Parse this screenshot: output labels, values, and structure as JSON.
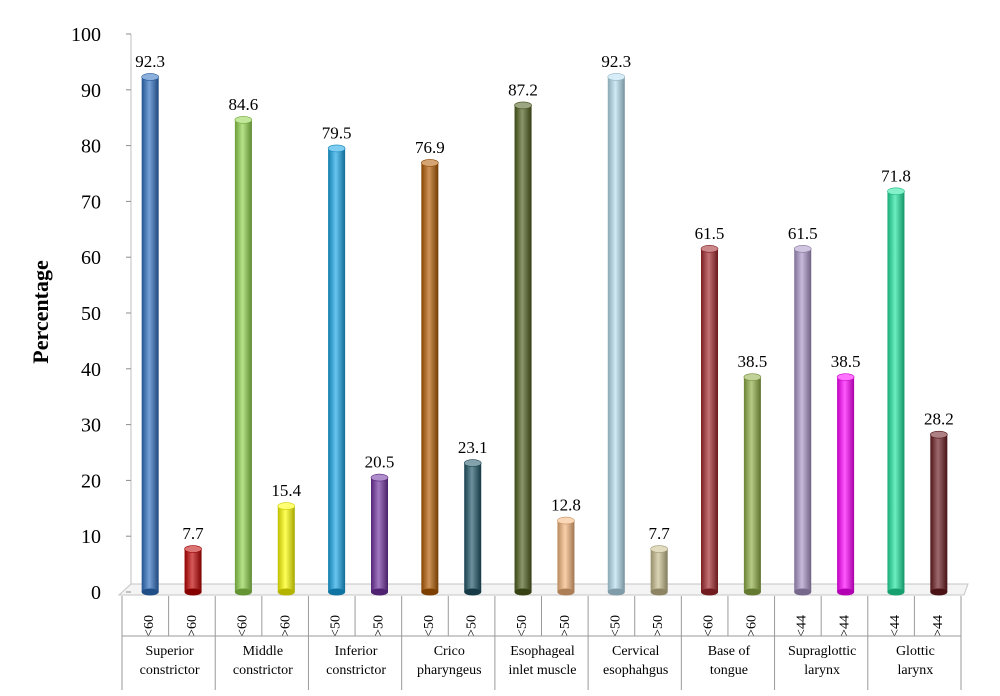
{
  "chart_data": {
    "type": "bar",
    "title": "",
    "ylabel": "Percentage",
    "xlabel": "",
    "ylim": [
      0,
      100
    ],
    "yticks": [
      0,
      10,
      20,
      30,
      40,
      50,
      60,
      70,
      80,
      90,
      100
    ],
    "grid": false,
    "legend": "none",
    "groups": [
      {
        "name": [
          "Superior",
          "constrictor"
        ],
        "bars": [
          {
            "label": "<60",
            "value": 92.3,
            "color": "#2e6fc0"
          },
          {
            "label": ">60",
            "value": 7.7,
            "color": "#c00000"
          }
        ]
      },
      {
        "name": [
          "Middle",
          "constrictor"
        ],
        "bars": [
          {
            "label": "<60",
            "value": 84.6,
            "color": "#8fd34a"
          },
          {
            "label": ">60",
            "value": 15.4,
            "color": "#ffff00"
          }
        ]
      },
      {
        "name": [
          "Inferior",
          "constrictor"
        ],
        "bars": [
          {
            "label": "<50",
            "value": 79.5,
            "color": "#16a6e6"
          },
          {
            "label": ">50",
            "value": 20.5,
            "color": "#7030a0"
          }
        ]
      },
      {
        "name": [
          "Crico",
          "pharyngeus"
        ],
        "bars": [
          {
            "label": "<50",
            "value": 76.9,
            "color": "#b35a00"
          },
          {
            "label": ">50",
            "value": 23.1,
            "color": "#1f5566"
          }
        ]
      },
      {
        "name": [
          "Esophageal",
          "inlet muscle"
        ],
        "bars": [
          {
            "label": "<50",
            "value": 87.2,
            "color": "#4d5e1b"
          },
          {
            "label": ">50",
            "value": 12.8,
            "color": "#f5b67c"
          }
        ]
      },
      {
        "name": [
          "Cervical",
          "esophahgus"
        ],
        "bars": [
          {
            "label": "<50",
            "value": 92.3,
            "color": "#b7dff0"
          },
          {
            "label": ">50",
            "value": 7.7,
            "color": "#c8bd8c"
          }
        ]
      },
      {
        "name": [
          "Base of",
          "tongue"
        ],
        "bars": [
          {
            "label": "<60",
            "value": 61.5,
            "color": "#a1262b"
          },
          {
            "label": ">60",
            "value": 38.5,
            "color": "#8fae45"
          }
        ]
      },
      {
        "name": [
          "Supraglottic",
          "larynx"
        ],
        "bars": [
          {
            "label": "<44",
            "value": 61.5,
            "color": "#a995c6"
          },
          {
            "label": ">44",
            "value": 38.5,
            "color": "#ff00ff"
          }
        ]
      },
      {
        "name": [
          "Glottic",
          "larynx"
        ],
        "bars": [
          {
            "label": "<44",
            "value": 71.8,
            "color": "#1fe5a0"
          },
          {
            "label": ">44",
            "value": 28.2,
            "color": "#6a1a1e"
          }
        ]
      }
    ]
  }
}
